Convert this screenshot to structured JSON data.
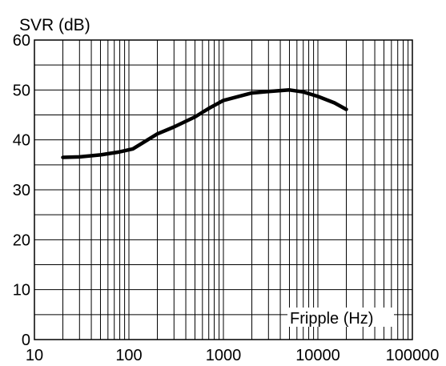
{
  "chart_data": {
    "type": "line",
    "ylabel": "SVR (dB)",
    "xlabel": "Fripple (Hz)",
    "xscale": "log",
    "xlim": [
      10,
      100000
    ],
    "ylim": [
      0,
      60
    ],
    "grid": true,
    "x_ticks": [
      "10",
      "100",
      "1000",
      "10000",
      "100000"
    ],
    "y_ticks": [
      "0",
      "10",
      "20",
      "30",
      "40",
      "50",
      "60"
    ],
    "series": [
      {
        "x": [
          20,
          30,
          50,
          80,
          110,
          200,
          300,
          500,
          700,
          1000,
          2000,
          3000,
          5000,
          7000,
          10000,
          15000,
          20000
        ],
        "y": [
          36.5,
          36.6,
          37.0,
          37.6,
          38.2,
          41.2,
          42.6,
          44.6,
          46.3,
          47.9,
          49.4,
          49.7,
          50.0,
          49.6,
          48.7,
          47.4,
          46.1
        ]
      }
    ]
  }
}
